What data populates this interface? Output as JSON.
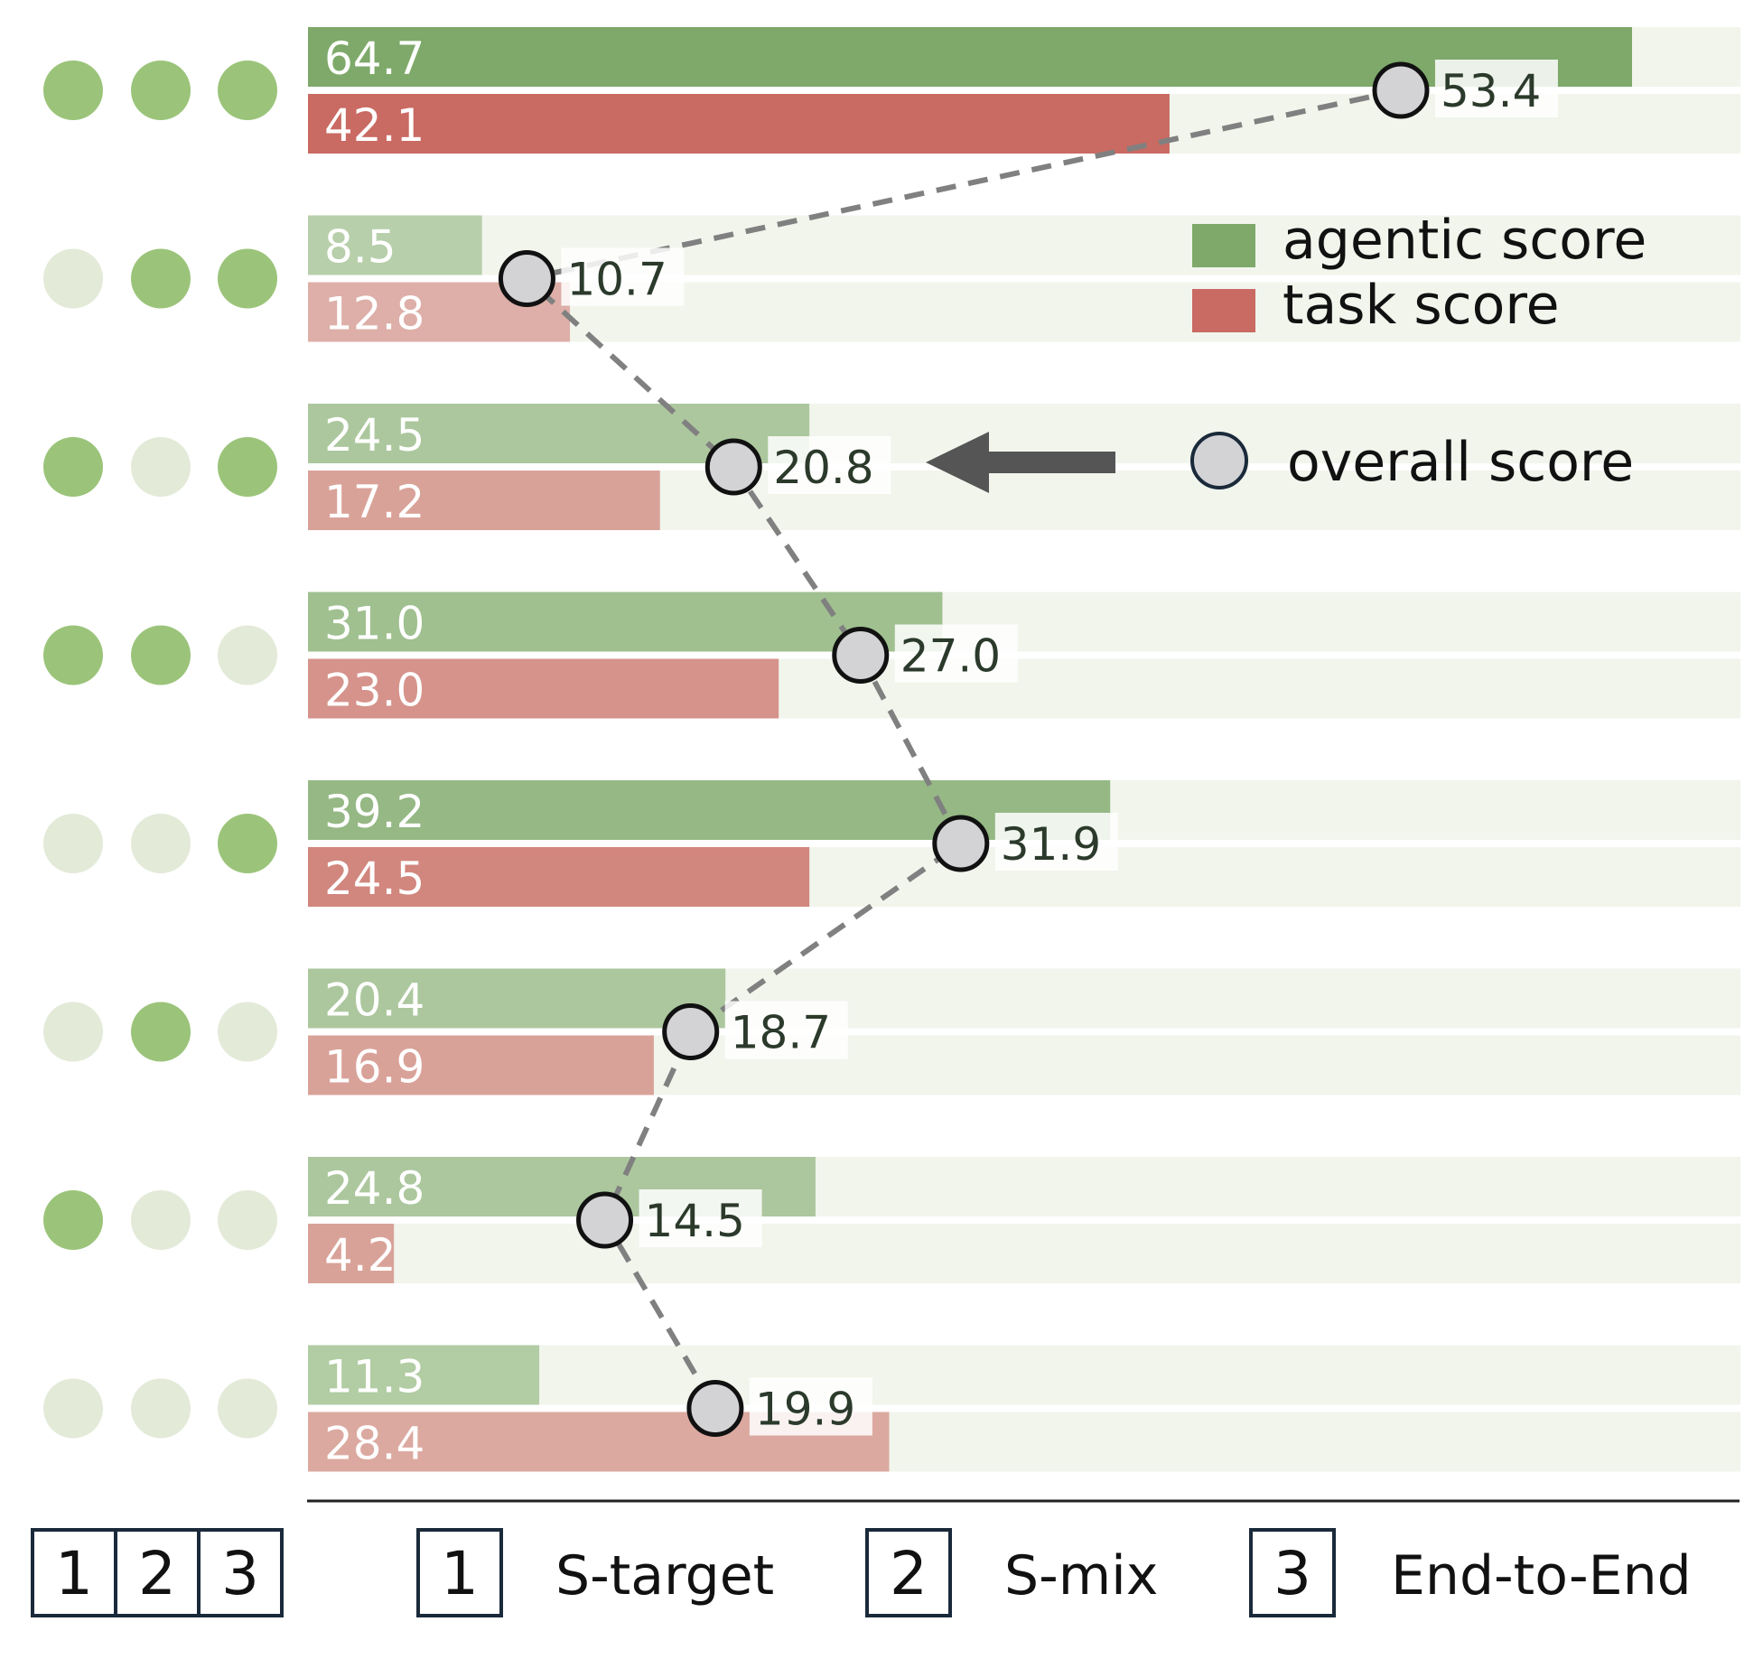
{
  "chart_data": {
    "type": "bar",
    "orientation": "horizontal",
    "xlim": [
      0,
      70
    ],
    "grid": false,
    "legend_placement": "top-right",
    "rows": [
      {
        "config": [
          true,
          true,
          true
        ],
        "agentic": 64.7,
        "task": 42.1,
        "overall": 53.4
      },
      {
        "config": [
          false,
          true,
          true
        ],
        "agentic": 8.5,
        "task": 12.8,
        "overall": 10.7
      },
      {
        "config": [
          true,
          false,
          true
        ],
        "agentic": 24.5,
        "task": 17.2,
        "overall": 20.8
      },
      {
        "config": [
          true,
          true,
          false
        ],
        "agentic": 31.0,
        "task": 23.0,
        "overall": 27.0
      },
      {
        "config": [
          false,
          false,
          true
        ],
        "agentic": 39.2,
        "task": 24.5,
        "overall": 31.9
      },
      {
        "config": [
          false,
          true,
          false
        ],
        "agentic": 20.4,
        "task": 16.9,
        "overall": 18.7
      },
      {
        "config": [
          true,
          false,
          false
        ],
        "agentic": 24.8,
        "task": 4.2,
        "overall": 14.5
      },
      {
        "config": [
          false,
          false,
          false
        ],
        "agentic": 11.3,
        "task": 28.4,
        "overall": 19.9
      }
    ],
    "series": [
      {
        "name": "agentic score",
        "key": "agentic",
        "color": "#7ea96a"
      },
      {
        "name": "task score",
        "key": "task",
        "color": "#c96a63"
      },
      {
        "name": "overall score",
        "key": "overall",
        "color": "#d3d3d6"
      }
    ],
    "config_columns": [
      {
        "number": "1",
        "name": "S-target"
      },
      {
        "number": "2",
        "name": "S-mix"
      },
      {
        "number": "3",
        "name": "End-to-End"
      }
    ]
  },
  "colors": {
    "dot_on": "#9bc47a",
    "dot_off": "#e3ead8",
    "track": "#f1f5ec",
    "line": "#808080",
    "arrow": "#555555",
    "axis": "#222222"
  }
}
